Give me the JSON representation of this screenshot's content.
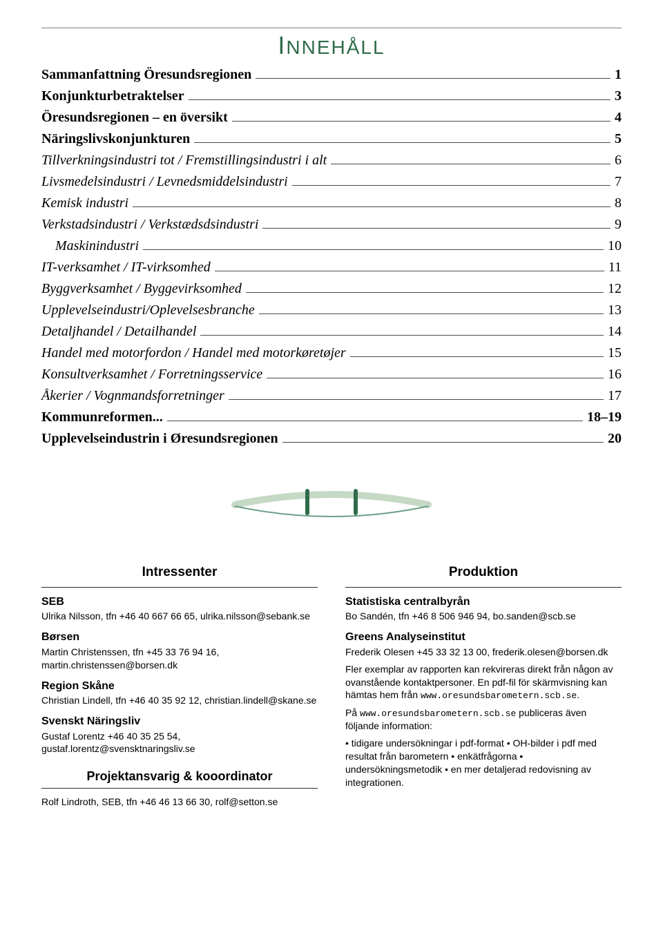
{
  "title": "INNEHÅLL",
  "toc": [
    {
      "label": "Sammanfattning Öresundsregionen",
      "page": "1",
      "bold": true,
      "indent": false
    },
    {
      "label": "Konjunkturbetraktelser",
      "page": "3",
      "bold": true,
      "indent": false
    },
    {
      "label": "Öresundsregionen – en översikt",
      "page": "4",
      "bold": true,
      "indent": false
    },
    {
      "label": "Näringslivskonjunkturen",
      "page": "5",
      "bold": true,
      "indent": false
    },
    {
      "label": "Tillverkningsindustri tot / Fremstillingsindustri i alt",
      "page": "6",
      "bold": false,
      "indent": false
    },
    {
      "label": "Livsmedelsindustri / Levnedsmiddelsindustri",
      "page": "7",
      "bold": false,
      "indent": false
    },
    {
      "label": "Kemisk industri",
      "page": "8",
      "bold": false,
      "indent": false
    },
    {
      "label": "Verkstadsindustri / Verkstædsdsindustri",
      "page": "9",
      "bold": false,
      "indent": false
    },
    {
      "label": "Maskinindustri",
      "page": "10",
      "bold": false,
      "indent": true
    },
    {
      "label": "IT-verksamhet / IT-virksomhed",
      "page": "11",
      "bold": false,
      "indent": false
    },
    {
      "label": "Byggverksamhet / Byggevirksomhed",
      "page": "12",
      "bold": false,
      "indent": false
    },
    {
      "label": "Upplevelseindustri/Oplevelsesbranche",
      "page": "13",
      "bold": false,
      "indent": false
    },
    {
      "label": "Detaljhandel / Detailhandel",
      "page": "14",
      "bold": false,
      "indent": false
    },
    {
      "label": "Handel med motorfordon / Handel med motorkøretøjer",
      "page": "15",
      "bold": false,
      "indent": false
    },
    {
      "label": "Konsultverksamhet / Forretningsservice",
      "page": "16",
      "bold": false,
      "indent": false
    },
    {
      "label": "Åkerier / Vognmandsforretninger",
      "page": "17",
      "bold": false,
      "indent": false
    },
    {
      "label": "Kommunreformen...",
      "page": "18–19",
      "bold": true,
      "indent": false
    },
    {
      "label": "Upplevelseindustrin i Øresundsregionen",
      "page": "20",
      "bold": true,
      "indent": false
    }
  ],
  "logo": {
    "arc_color": "#c5d9c5",
    "stroke_color": "#2f6b4a",
    "stroke1_color": "#6aa086"
  },
  "left": {
    "heading": "Intressenter",
    "blocks": [
      {
        "org": "SEB",
        "contact": "Ulrika Nilsson, tfn +46 40 667 66 65, ulrika.nilsson@sebank.se"
      },
      {
        "org": "Børsen",
        "contact": "Martin Christenssen, tfn +45 33 76 94 16, martin.christenssen@borsen.dk"
      },
      {
        "org": "Region Skåne",
        "contact": "Christian Lindell, tfn +46 40 35 92 12, christian.lindell@skane.se"
      },
      {
        "org": "Svenskt Näringsliv",
        "contact": "Gustaf Lorentz +46 40 35 25 54, gustaf.lorentz@svensktnaringsliv.se"
      }
    ],
    "sub_heading": "Projektansvarig & kooordinator",
    "sub_contact": "Rolf Lindroth, SEB, tfn +46 46 13 66 30, rolf@setton.se"
  },
  "right": {
    "heading": "Produktion",
    "blocks": [
      {
        "org": "Statistiska centralbyrån",
        "contact": "Bo Sandén, tfn +46 8 506 946 94, bo.sanden@scb.se"
      },
      {
        "org": "Greens Analyseinstitut",
        "contact": "Frederik Olesen +45 33 32 13 00, frederik.olesen@borsen.dk"
      }
    ],
    "para1a": "Fler exemplar av rapporten kan rekvireras direkt från någon av ovanstående kontaktpersoner. En pdf-fil för skärmvisning kan hämtas hem från ",
    "url1": "www.oresundsbarometern.scb.se",
    "para1b": ".",
    "para2a": "På ",
    "url2": "www.oresundsbarometern.scb.se",
    "para2b": " publiceras även följande information:",
    "bullets": [
      "tidigare undersökningar i pdf-format",
      "OH-bilder i pdf med resultat från barometern",
      "enkätfrågorna",
      "undersökningsmetodik",
      "en mer detaljerad redovisning av integrationen."
    ]
  }
}
